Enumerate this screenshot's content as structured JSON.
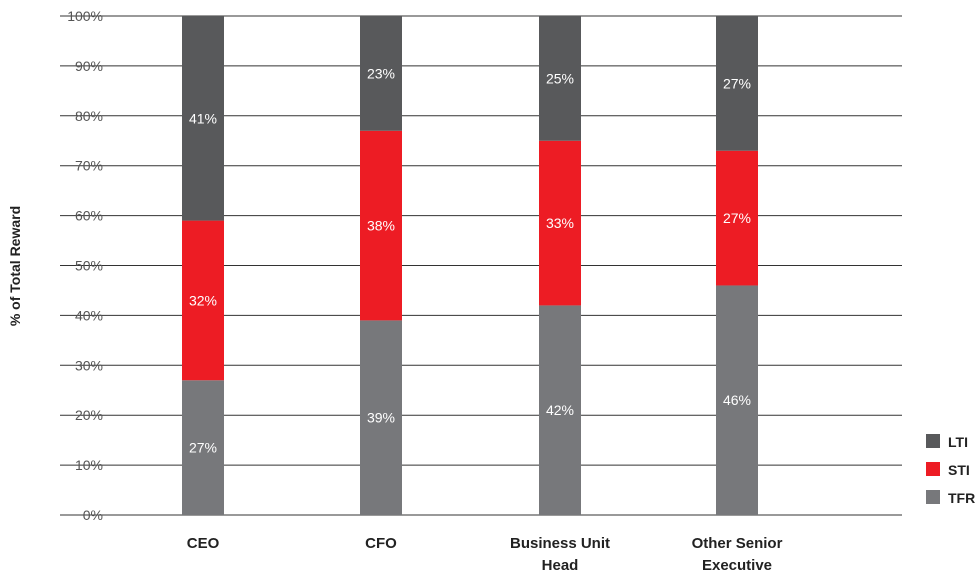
{
  "chart_data": {
    "type": "bar",
    "stacked": true,
    "title": "",
    "ylabel": "% of Total Reward",
    "xlabel": "",
    "ylim": [
      0,
      100
    ],
    "yticks": [
      "0%",
      "10%",
      "20%",
      "30%",
      "40%",
      "50%",
      "60%",
      "70%",
      "80%",
      "90%",
      "100%"
    ],
    "categories": [
      [
        "CEO"
      ],
      [
        "CFO"
      ],
      [
        "Business Unit",
        "Head"
      ],
      [
        "Other Senior",
        "Executive"
      ]
    ],
    "series": [
      {
        "name": "TFR",
        "values": [
          27,
          39,
          42,
          46
        ],
        "labels": [
          "27%",
          "39%",
          "42%",
          "46%"
        ],
        "color": "#77787b"
      },
      {
        "name": "STI",
        "values": [
          32,
          38,
          33,
          27
        ],
        "labels": [
          "32%",
          "38%",
          "33%",
          "27%"
        ],
        "color": "#ed1c24"
      },
      {
        "name": "LTI",
        "values": [
          41,
          23,
          25,
          27
        ],
        "labels": [
          "41%",
          "23%",
          "25%",
          "27%"
        ],
        "color": "#58595b"
      }
    ],
    "legend": {
      "position": "bottom-right",
      "order": [
        "LTI",
        "STI",
        "TFR"
      ]
    },
    "grid": true
  }
}
